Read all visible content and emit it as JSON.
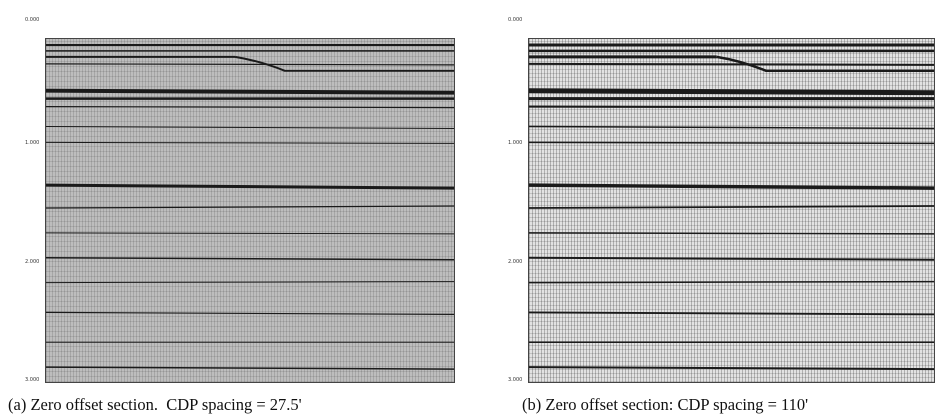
{
  "panels": [
    {
      "caption": "(a) Zero offset section.  CDP spacing = 27.5'",
      "time_labels": [
        "0.000",
        "1.000",
        "2.000",
        "3.000"
      ]
    },
    {
      "caption": "(b) Zero offset section: CDP spacing = 110'",
      "time_labels": [
        "0.000",
        "1.000",
        "2.000",
        "3.000"
      ]
    }
  ]
}
